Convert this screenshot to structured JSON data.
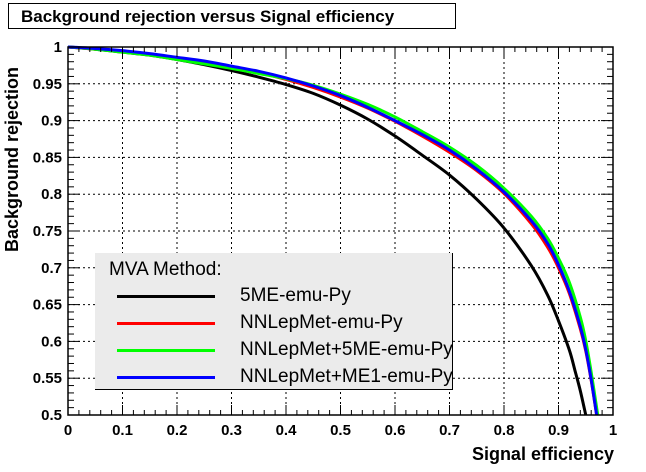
{
  "chart_data": {
    "type": "line",
    "title": "Background rejection versus Signal efficiency",
    "xlabel": "Signal efficiency",
    "ylabel": "Background rejection",
    "xlim": [
      0,
      1
    ],
    "ylim": [
      0.5,
      1
    ],
    "x_ticks": [
      "0",
      "0.1",
      "0.2",
      "0.3",
      "0.4",
      "0.5",
      "0.6",
      "0.7",
      "0.8",
      "0.9",
      "1"
    ],
    "y_ticks": [
      "0.5",
      "0.55",
      "0.6",
      "0.65",
      "0.7",
      "0.75",
      "0.8",
      "0.85",
      "0.9",
      "0.95",
      "1"
    ],
    "grid": true,
    "legend": {
      "header": "MVA Method:",
      "placement": "bottom-left"
    },
    "series": [
      {
        "name": "5ME-emu-Py",
        "color": "#000000",
        "x": [
          0,
          0.05,
          0.1,
          0.15,
          0.2,
          0.25,
          0.3,
          0.35,
          0.4,
          0.45,
          0.5,
          0.55,
          0.6,
          0.65,
          0.7,
          0.75,
          0.8,
          0.85,
          0.88,
          0.9,
          0.92,
          0.93,
          0.94,
          0.95
        ],
        "y": [
          1.0,
          0.997,
          0.993,
          0.989,
          0.983,
          0.976,
          0.968,
          0.959,
          0.949,
          0.937,
          0.921,
          0.902,
          0.879,
          0.853,
          0.826,
          0.793,
          0.754,
          0.703,
          0.663,
          0.628,
          0.588,
          0.561,
          0.533,
          0.5
        ]
      },
      {
        "name": "NNLepMet-emu-Py",
        "color": "#ff0000",
        "x": [
          0,
          0.05,
          0.1,
          0.15,
          0.2,
          0.25,
          0.3,
          0.35,
          0.4,
          0.45,
          0.5,
          0.55,
          0.6,
          0.65,
          0.7,
          0.75,
          0.8,
          0.85,
          0.88,
          0.9,
          0.92,
          0.94,
          0.95,
          0.96,
          0.97
        ],
        "y": [
          1.0,
          0.997,
          0.994,
          0.99,
          0.985,
          0.979,
          0.972,
          0.965,
          0.956,
          0.945,
          0.932,
          0.917,
          0.899,
          0.879,
          0.857,
          0.832,
          0.801,
          0.76,
          0.728,
          0.7,
          0.665,
          0.617,
          0.587,
          0.547,
          0.5
        ]
      },
      {
        "name": "NNLepMet+5ME-emu-Py",
        "color": "#00ff00",
        "x": [
          0,
          0.05,
          0.1,
          0.15,
          0.2,
          0.25,
          0.3,
          0.35,
          0.4,
          0.45,
          0.5,
          0.55,
          0.6,
          0.65,
          0.7,
          0.75,
          0.8,
          0.85,
          0.88,
          0.9,
          0.92,
          0.94,
          0.95,
          0.96,
          0.972
        ],
        "y": [
          1.0,
          0.997,
          0.993,
          0.989,
          0.983,
          0.977,
          0.971,
          0.964,
          0.957,
          0.948,
          0.936,
          0.922,
          0.905,
          0.885,
          0.864,
          0.839,
          0.808,
          0.77,
          0.74,
          0.713,
          0.68,
          0.633,
          0.601,
          0.558,
          0.5
        ]
      },
      {
        "name": "NNLepMet+ME1-emu-Py",
        "color": "#0000ff",
        "x": [
          0,
          0.05,
          0.1,
          0.15,
          0.2,
          0.25,
          0.3,
          0.35,
          0.4,
          0.45,
          0.5,
          0.55,
          0.6,
          0.65,
          0.7,
          0.75,
          0.8,
          0.85,
          0.88,
          0.9,
          0.92,
          0.94,
          0.95,
          0.96,
          0.97
        ],
        "y": [
          1.0,
          0.998,
          0.995,
          0.991,
          0.986,
          0.981,
          0.974,
          0.967,
          0.958,
          0.947,
          0.934,
          0.918,
          0.9,
          0.881,
          0.86,
          0.834,
          0.803,
          0.764,
          0.733,
          0.704,
          0.668,
          0.62,
          0.589,
          0.548,
          0.5
        ]
      }
    ]
  }
}
